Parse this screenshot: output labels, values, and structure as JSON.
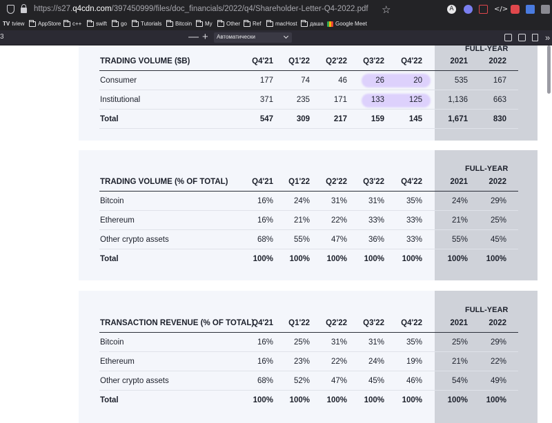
{
  "browser": {
    "url_prefix": "https://s27.",
    "url_host": "q4cdn.com",
    "url_path": "/397450999/files/doc_financials/2022/q4/Shareholder-Letter-Q4-2022.pdf",
    "bookmarks": [
      "tview",
      "AppStore",
      "c++",
      "swift",
      "go",
      "Tutorials",
      "Bitcoin",
      "My",
      "Other",
      "Ref",
      "macHost",
      "даша",
      "Google Meet"
    ],
    "page_number": "3",
    "zoom_value": "Автоматически"
  },
  "colors": {
    "highlight": "#ddd1fc",
    "full_year_band": "#cfd2d9",
    "panel_bg": "#f4f6fb"
  },
  "columns": [
    "Q4'21",
    "Q1'22",
    "Q2'22",
    "Q3'22",
    "Q4'22",
    "2021",
    "2022"
  ],
  "full_year_label": "FULL-YEAR",
  "tables": [
    {
      "title": "TRADING VOLUME ($B)",
      "rows": [
        {
          "label": "Consumer",
          "values": [
            "177",
            "74",
            "46",
            "26",
            "20",
            "535",
            "167"
          ]
        },
        {
          "label": "Institutional",
          "values": [
            "371",
            "235",
            "171",
            "133",
            "125",
            "1,136",
            "663"
          ]
        },
        {
          "label": "Total",
          "values": [
            "547",
            "309",
            "217",
            "159",
            "145",
            "1,671",
            "830"
          ]
        }
      ]
    },
    {
      "title": "TRADING VOLUME (% OF TOTAL)",
      "rows": [
        {
          "label": "Bitcoin",
          "values": [
            "16%",
            "24%",
            "31%",
            "31%",
            "35%",
            "24%",
            "29%"
          ]
        },
        {
          "label": "Ethereum",
          "values": [
            "16%",
            "21%",
            "22%",
            "33%",
            "33%",
            "21%",
            "25%"
          ]
        },
        {
          "label": "Other crypto assets",
          "values": [
            "68%",
            "55%",
            "47%",
            "36%",
            "33%",
            "55%",
            "45%"
          ]
        },
        {
          "label": "Total",
          "values": [
            "100%",
            "100%",
            "100%",
            "100%",
            "100%",
            "100%",
            "100%"
          ]
        }
      ]
    },
    {
      "title": "TRANSACTION REVENUE (% OF TOTAL)",
      "rows": [
        {
          "label": "Bitcoin",
          "values": [
            "16%",
            "25%",
            "31%",
            "31%",
            "35%",
            "25%",
            "29%"
          ]
        },
        {
          "label": "Ethereum",
          "values": [
            "16%",
            "23%",
            "22%",
            "24%",
            "19%",
            "21%",
            "22%"
          ]
        },
        {
          "label": "Other crypto assets",
          "values": [
            "68%",
            "52%",
            "47%",
            "45%",
            "46%",
            "54%",
            "49%"
          ]
        },
        {
          "label": "Total",
          "values": [
            "100%",
            "100%",
            "100%",
            "100%",
            "100%",
            "100%",
            "100%"
          ]
        }
      ]
    }
  ]
}
